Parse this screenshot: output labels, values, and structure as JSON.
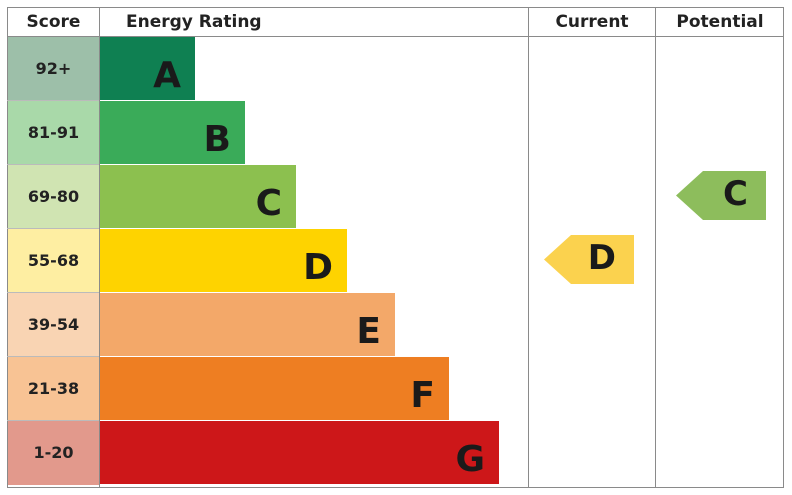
{
  "chart_data": {
    "type": "energy-rating",
    "headers": {
      "score": "Score",
      "rating": "Energy Rating",
      "current": "Current",
      "potential": "Potential"
    },
    "bands": [
      {
        "letter": "A",
        "score": "92+",
        "color": "#0f8052",
        "score_color": "#9dbfa9"
      },
      {
        "letter": "B",
        "score": "81-91",
        "color": "#3aab59",
        "score_color": "#a9d9a9"
      },
      {
        "letter": "C",
        "score": "69-80",
        "color": "#8cc04f",
        "score_color": "#d0e4b2"
      },
      {
        "letter": "D",
        "score": "55-68",
        "color": "#fed300",
        "score_color": "#feeea2"
      },
      {
        "letter": "E",
        "score": "39-54",
        "color": "#f3a869",
        "score_color": "#f9d4b3"
      },
      {
        "letter": "F",
        "score": "21-38",
        "color": "#ee7e22",
        "score_color": "#f8c394"
      },
      {
        "letter": "G",
        "score": "1-20",
        "color": "#cd1719",
        "score_color": "#e2998c"
      }
    ],
    "current": {
      "letter": "D",
      "color": "#fbd24e"
    },
    "potential": {
      "letter": "C",
      "color": "#8dbd5c"
    }
  }
}
